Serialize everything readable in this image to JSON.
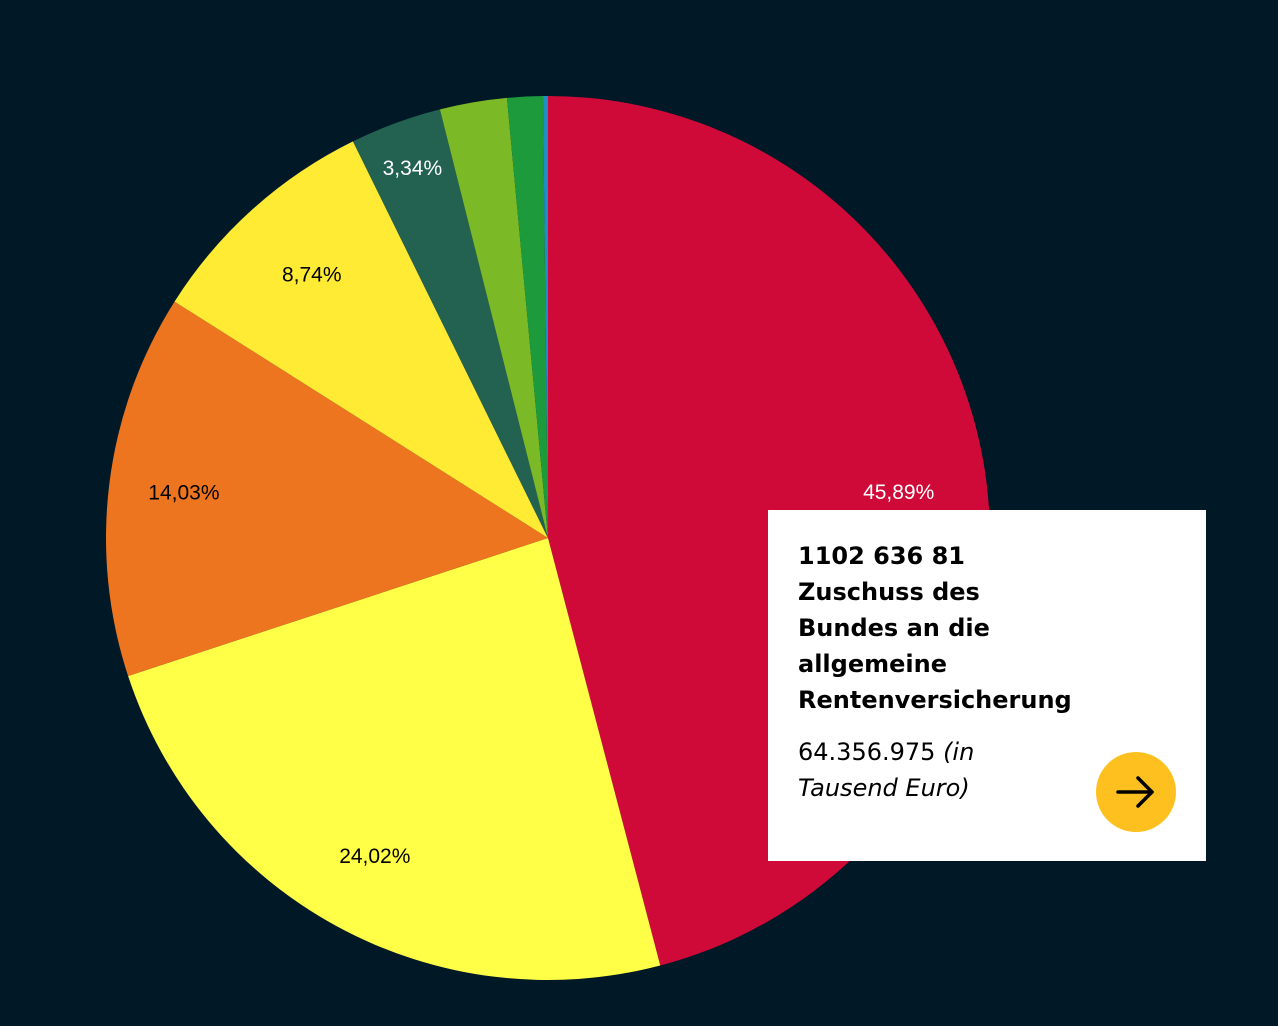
{
  "chart_data": {
    "type": "pie",
    "slices": [
      {
        "label": "45,89%",
        "value": 45.89,
        "color": "#D00A38",
        "label_color": "#ffffff"
      },
      {
        "label": "24,02%",
        "value": 24.02,
        "color": "#FFFF47",
        "label_color": "#000000"
      },
      {
        "label": "14,03%",
        "value": 14.03,
        "color": "#EE7520",
        "label_color": "#000000"
      },
      {
        "label": "8,74%",
        "value": 8.74,
        "color": "#FFEB33",
        "label_color": "#000000"
      },
      {
        "label": "3,34%",
        "value": 3.34,
        "color": "#236250",
        "label_color": "#ffffff"
      },
      {
        "label": "",
        "value": 2.45,
        "color": "#7BBA26",
        "label_color": "#000000"
      },
      {
        "label": "",
        "value": 1.3,
        "color": "#1D9A3B",
        "label_color": "#000000"
      },
      {
        "label": "",
        "value": 0.18,
        "color": "#1E8EC9",
        "label_color": "#000000"
      }
    ],
    "start_angle_deg": 0,
    "direction": "clockwise",
    "legend": "none"
  },
  "tooltip": {
    "code": "1102 636 81",
    "title_lines": [
      "Zuschuss des",
      "Bundes an die",
      "allgemeine",
      "Rentenversicherung"
    ],
    "value": "64.356.975",
    "unit": "(in Tausend Euro)",
    "button_icon": "arrow-right-icon",
    "button_color": "#FEC01F"
  },
  "colors": {
    "background": "#011827"
  }
}
